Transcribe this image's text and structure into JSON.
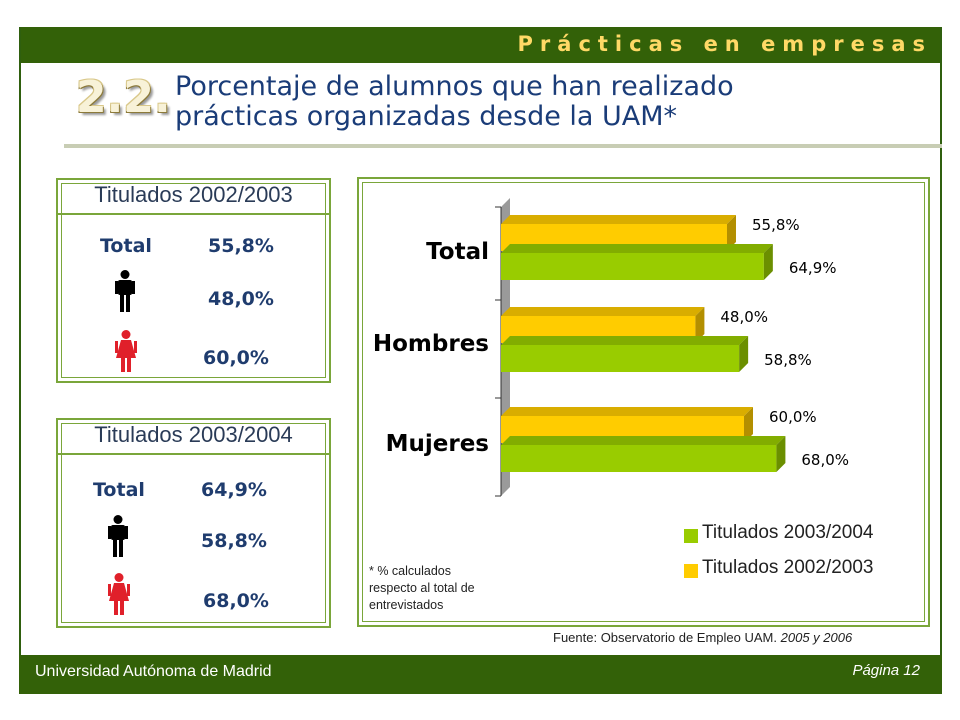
{
  "header": {
    "banner": "Prácticas en empresas",
    "section_number": "2.2.",
    "title_line1": "Porcentaje de alumnos que han realizado",
    "title_line2": "prácticas organizadas desde la UAM*"
  },
  "panels": [
    {
      "title": "Titulados 2002/2003",
      "total_label": "Total",
      "total_value": "55,8%",
      "men_value": "48,0%",
      "women_value": "60,0%",
      "men_icon": "man-icon",
      "women_icon": "woman-icon"
    },
    {
      "title": "Titulados 2003/2004",
      "total_label": "Total",
      "total_value": "64,9%",
      "men_value": "58,8%",
      "women_value": "68,0%",
      "men_icon": "man-icon",
      "women_icon": "woman-icon"
    }
  ],
  "footnote": [
    "* % calculados",
    "respecto al total de",
    "entrevistados"
  ],
  "source": {
    "text": "Fuente: Observatorio de Empleo UAM.",
    "years": "2005 y 2006"
  },
  "footer": {
    "university": "Universidad Autónoma de Madrid",
    "page": "Página 12"
  },
  "colors": {
    "banner_green": "#336108",
    "series_2003_2004": "#99cc00",
    "series_2002_2003": "#ffcc00",
    "title_blue": "#1a3c78"
  },
  "chart_data": {
    "type": "bar",
    "orientation": "horizontal",
    "categories": [
      "Total",
      "Hombres",
      "Mujeres"
    ],
    "series": [
      {
        "name": "Titulados 2002/2003",
        "values": [
          55.8,
          48.0,
          60.0
        ],
        "labels": [
          "55,8%",
          "48,0%",
          "60,0%"
        ],
        "color": "#ffcc00"
      },
      {
        "name": "Titulados 2003/2004",
        "values": [
          64.9,
          58.8,
          68.0
        ],
        "labels": [
          "64,9%",
          "58,8%",
          "68,0%"
        ],
        "color": "#99cc00"
      }
    ],
    "legend": [
      "Titulados 2003/2004",
      "Titulados 2002/2003"
    ],
    "legend_position": "bottom-right",
    "xlim": [
      0,
      80
    ],
    "grid": false,
    "style": "3d"
  }
}
